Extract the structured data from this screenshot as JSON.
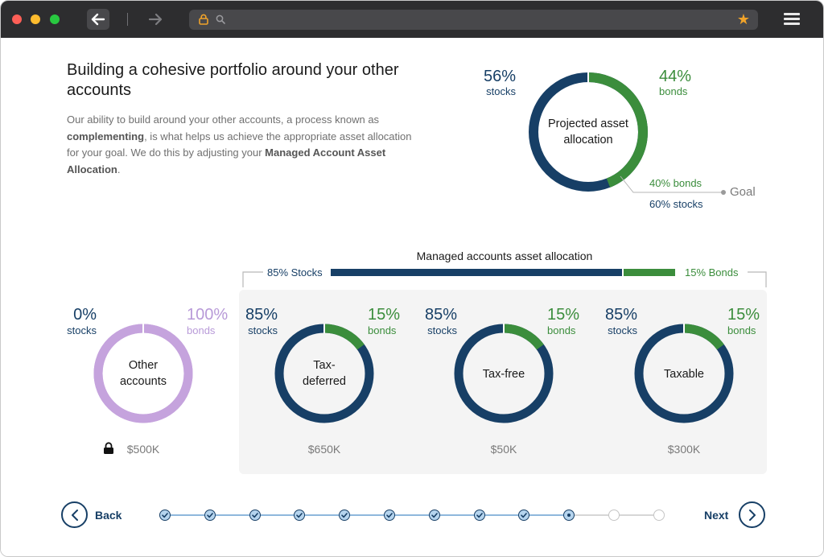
{
  "content": {
    "heading": "Building a cohesive portfolio around your other accounts",
    "paragraph": {
      "part1": "Our ability to build around your other accounts, a process known as ",
      "bold1": "complementing",
      "part2": ", is what helps us achieve the appropriate asset allocation for your goal. We do this by adjusting your ",
      "bold2": "Managed Account Asset Allocation",
      "part3": "."
    }
  },
  "projected": {
    "center_line1": "Projected asset",
    "center_line2": "allocation",
    "stocks_pct": "56%",
    "stocks_label": "stocks",
    "bonds_pct": "44%",
    "bonds_label": "bonds",
    "goal_bonds": "40% bonds",
    "goal_stocks": "60% stocks",
    "goal_label": "Goal",
    "stocks_value": 56,
    "bonds_value": 44
  },
  "managed": {
    "title": "Managed accounts asset allocation",
    "stocks_label": "85% Stocks",
    "bonds_label": "15% Bonds",
    "stocks_value": 85,
    "bonds_value": 15
  },
  "accounts": [
    {
      "name_line1": "Other",
      "name_line2": "accounts",
      "stocks_pct": "0%",
      "stocks_label": "stocks",
      "bonds_pct": "100%",
      "bonds_label": "bonds",
      "amount": "$500K",
      "locked": true,
      "stocks_value": 0,
      "bonds_value": 100
    },
    {
      "name_line1": "Tax-",
      "name_line2": "deferred",
      "stocks_pct": "85%",
      "stocks_label": "stocks",
      "bonds_pct": "15%",
      "bonds_label": "bonds",
      "amount": "$650K",
      "stocks_value": 85,
      "bonds_value": 15
    },
    {
      "name_line1": "Tax-free",
      "name_line2": "",
      "stocks_pct": "85%",
      "stocks_label": "stocks",
      "bonds_pct": "15%",
      "bonds_label": "bonds",
      "amount": "$50K",
      "stocks_value": 85,
      "bonds_value": 15
    },
    {
      "name_line1": "Taxable",
      "name_line2": "",
      "stocks_pct": "85%",
      "stocks_label": "stocks",
      "bonds_pct": "15%",
      "bonds_label": "bonds",
      "amount": "$300K",
      "stocks_value": 85,
      "bonds_value": 15
    }
  ],
  "footer": {
    "back_label": "Back",
    "next_label": "Next",
    "steps_total": 12,
    "steps_completed": 9,
    "current_step": 10
  },
  "colors": {
    "stocks": "#173f66",
    "bonds": "#3b8d3c",
    "other_bonds": "#c5a3dd",
    "accent_star": "#f0a32a"
  },
  "icons": [
    "back-arrow-icon",
    "forward-arrow-icon",
    "lock-icon",
    "search-icon",
    "star-icon",
    "hamburger-menu-icon",
    "padlock-icon",
    "chevron-left-icon",
    "chevron-right-icon",
    "check-icon"
  ]
}
